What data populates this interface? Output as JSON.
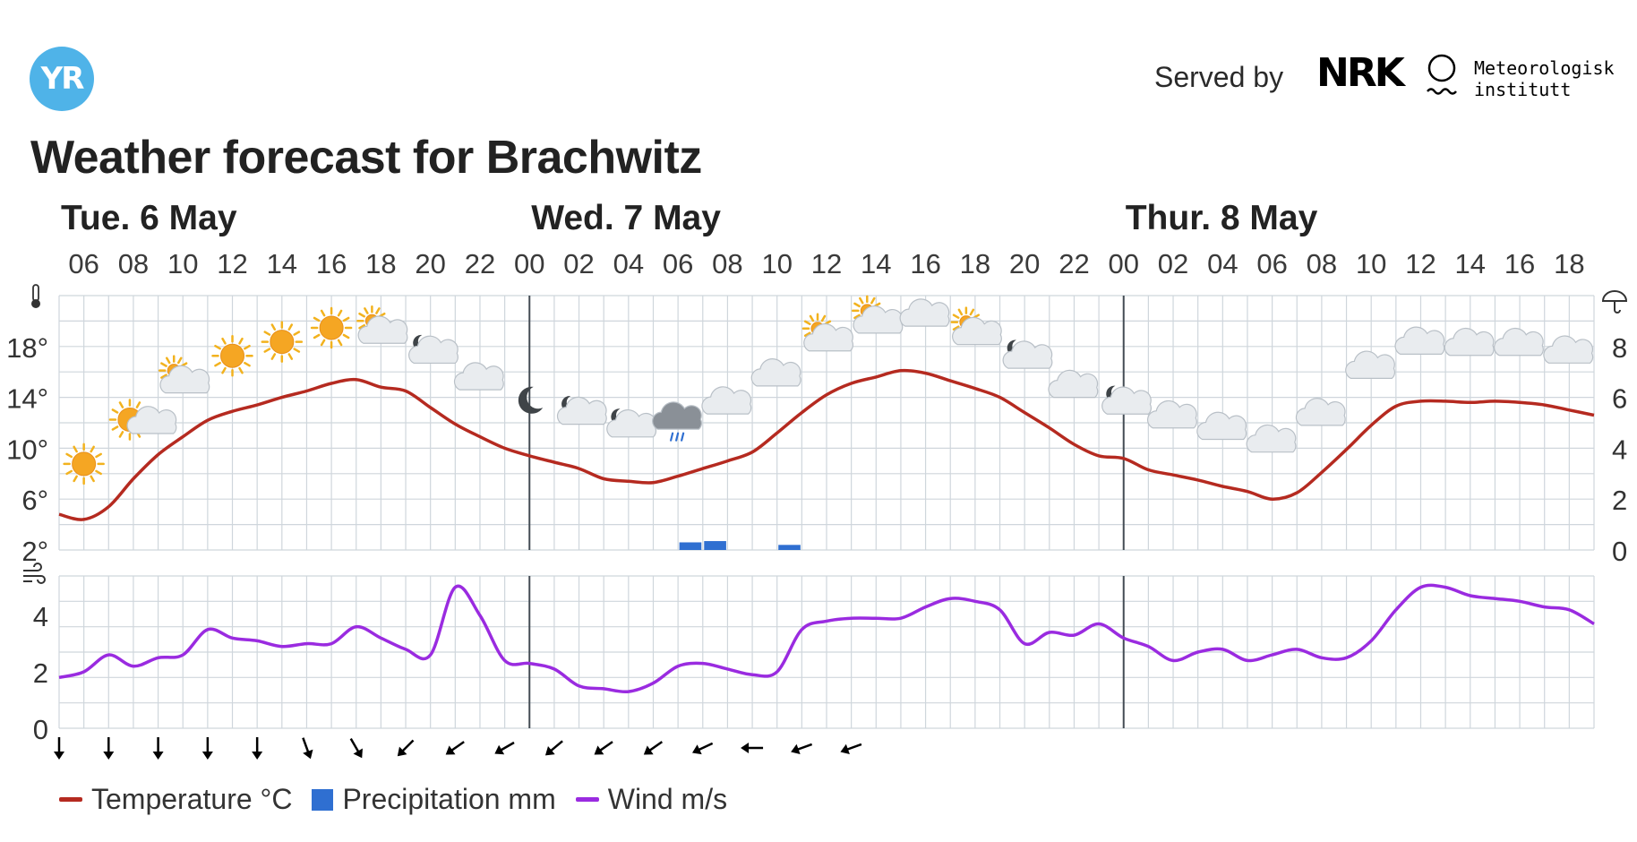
{
  "header": {
    "logo_text": "YR",
    "served_by": "Served by",
    "nrk_text": "NRK",
    "met_line1": "Meteorologisk",
    "met_line2": "institutt",
    "title": "Weather forecast for Brachwitz"
  },
  "legend": [
    {
      "label": "Temperature °C",
      "color": "#b52a20",
      "kind": "line"
    },
    {
      "label": "Precipitation mm",
      "color": "#2f6fd1",
      "kind": "box"
    },
    {
      "label": "Wind m/s",
      "color": "#9a2be0",
      "kind": "line"
    }
  ],
  "colors": {
    "temperature": "#b52a20",
    "precipitation": "#2f6fd1",
    "wind": "#9a2be0",
    "grid": "#cfd6dc",
    "day_divider": "#444c54"
  },
  "chart_data": [
    {
      "type": "line",
      "title": "Weather forecast for Brachwitz",
      "days": [
        {
          "label": "Tue. 6 May",
          "start_hour": 5
        },
        {
          "label": "Wed. 7 May",
          "start_hour": 24
        },
        {
          "label": "Thur. 8 May",
          "start_hour": 48
        }
      ],
      "hour_range": [
        5,
        67
      ],
      "x_tick_labels": [
        "06",
        "08",
        "10",
        "12",
        "14",
        "16",
        "18",
        "20",
        "22",
        "00",
        "02",
        "04",
        "06",
        "08",
        "10",
        "12",
        "14",
        "16",
        "18",
        "20",
        "22",
        "00",
        "02",
        "04",
        "06",
        "08",
        "10",
        "12",
        "14",
        "16",
        "18"
      ],
      "x_tick_hours": [
        6,
        8,
        10,
        12,
        14,
        16,
        18,
        20,
        22,
        24,
        26,
        28,
        30,
        32,
        34,
        36,
        38,
        40,
        42,
        44,
        46,
        48,
        50,
        52,
        54,
        56,
        58,
        60,
        62,
        64,
        66
      ],
      "left_axis": {
        "ticks": [
          "2°",
          "6°",
          "10°",
          "14°",
          "18°"
        ],
        "ylim": [
          2,
          22
        ],
        "icon": "thermometer-icon"
      },
      "right_axis": {
        "ticks": [
          "0",
          "2",
          "4",
          "6",
          "8"
        ],
        "ylim": [
          0,
          10
        ],
        "icon": "umbrella-icon"
      },
      "series": [
        {
          "name": "Temperature °C",
          "axis": "left",
          "x": [
            5,
            6,
            7,
            8,
            9,
            10,
            11,
            12,
            13,
            14,
            15,
            16,
            17,
            18,
            19,
            20,
            21,
            22,
            23,
            24,
            25,
            26,
            27,
            28,
            29,
            30,
            31,
            32,
            33,
            34,
            35,
            36,
            37,
            38,
            39,
            40,
            41,
            42,
            43,
            44,
            45,
            46,
            47,
            48,
            49,
            50,
            51,
            52,
            53,
            54,
            55,
            56,
            57,
            58,
            59,
            60,
            61,
            62,
            63,
            64,
            65,
            66,
            67
          ],
          "values": [
            4.8,
            4.4,
            5.4,
            7.6,
            9.5,
            10.9,
            12.2,
            12.9,
            13.4,
            14.0,
            14.5,
            15.1,
            15.4,
            14.8,
            14.5,
            13.2,
            11.9,
            10.9,
            10.0,
            9.4,
            8.9,
            8.4,
            7.6,
            7.4,
            7.3,
            7.8,
            8.4,
            9.0,
            9.7,
            11.2,
            12.8,
            14.2,
            15.1,
            15.6,
            16.1,
            15.9,
            15.3,
            14.7,
            14.0,
            12.8,
            11.6,
            10.3,
            9.4,
            9.2,
            8.3,
            7.9,
            7.5,
            7.0,
            6.6,
            6.0,
            6.5,
            8.1,
            9.9,
            11.8,
            13.3,
            13.7,
            13.7,
            13.6,
            13.7,
            13.6,
            13.4,
            13.0,
            12.6
          ]
        },
        {
          "name": "Precipitation mm",
          "axis": "right",
          "type": "bar",
          "x": [
            30,
            31,
            34
          ],
          "values": [
            0.3,
            0.35,
            0.2
          ]
        }
      ],
      "weather_symbols": [
        {
          "hour": 6,
          "icon": "sun-icon"
        },
        {
          "hour": 8,
          "icon": "sun-partly-cloudy-icon"
        },
        {
          "hour": 10,
          "icon": "partly-cloudy-day-icon"
        },
        {
          "hour": 12,
          "icon": "sun-icon"
        },
        {
          "hour": 14,
          "icon": "sun-icon"
        },
        {
          "hour": 16,
          "icon": "sun-icon"
        },
        {
          "hour": 18,
          "icon": "partly-cloudy-day-icon"
        },
        {
          "hour": 20,
          "icon": "partly-cloudy-night-icon"
        },
        {
          "hour": 22,
          "icon": "cloud-icon"
        },
        {
          "hour": 24,
          "icon": "moon-icon"
        },
        {
          "hour": 26,
          "icon": "partly-cloudy-night-icon"
        },
        {
          "hour": 28,
          "icon": "partly-cloudy-night-icon"
        },
        {
          "hour": 30,
          "icon": "rain-cloud-icon"
        },
        {
          "hour": 32,
          "icon": "cloud-icon"
        },
        {
          "hour": 34,
          "icon": "cloud-icon"
        },
        {
          "hour": 36,
          "icon": "partly-cloudy-day-icon"
        },
        {
          "hour": 38,
          "icon": "partly-cloudy-day-icon"
        },
        {
          "hour": 40,
          "icon": "cloud-icon"
        },
        {
          "hour": 42,
          "icon": "partly-cloudy-day-icon"
        },
        {
          "hour": 44,
          "icon": "partly-cloudy-night-icon"
        },
        {
          "hour": 46,
          "icon": "cloud-icon"
        },
        {
          "hour": 48,
          "icon": "partly-cloudy-night-icon"
        },
        {
          "hour": 50,
          "icon": "cloud-icon"
        },
        {
          "hour": 52,
          "icon": "cloud-icon"
        },
        {
          "hour": 54,
          "icon": "cloud-icon"
        },
        {
          "hour": 56,
          "icon": "cloud-icon"
        },
        {
          "hour": 58,
          "icon": "cloud-icon"
        },
        {
          "hour": 60,
          "icon": "cloud-icon"
        },
        {
          "hour": 62,
          "icon": "cloud-icon"
        },
        {
          "hour": 64,
          "icon": "cloud-icon"
        },
        {
          "hour": 66,
          "icon": "cloud-icon"
        }
      ]
    },
    {
      "type": "line",
      "left_axis": {
        "ticks": [
          "0",
          "2",
          "4"
        ],
        "ylim": [
          0,
          5.4
        ],
        "icon": "wind-icon"
      },
      "series": [
        {
          "name": "Wind m/s",
          "x": [
            5,
            6,
            7,
            8,
            9,
            10,
            11,
            12,
            13,
            14,
            15,
            16,
            17,
            18,
            19,
            20,
            21,
            22,
            23,
            24,
            25,
            26,
            27,
            28,
            29,
            30,
            31,
            32,
            33,
            34,
            35,
            36,
            37,
            38,
            39,
            40,
            41,
            42,
            43,
            44,
            45,
            46,
            47,
            48,
            49,
            50,
            51,
            52,
            53,
            54,
            55,
            56,
            57,
            58,
            59,
            60,
            61,
            62,
            63,
            64,
            65,
            66,
            67
          ],
          "values": [
            1.8,
            2.0,
            2.6,
            2.2,
            2.5,
            2.6,
            3.5,
            3.2,
            3.1,
            2.9,
            3.0,
            3.0,
            3.6,
            3.2,
            2.8,
            2.6,
            5.0,
            4.0,
            2.4,
            2.3,
            2.1,
            1.5,
            1.4,
            1.3,
            1.6,
            2.2,
            2.3,
            2.1,
            1.9,
            2.0,
            3.5,
            3.8,
            3.9,
            3.9,
            3.9,
            4.3,
            4.6,
            4.5,
            4.2,
            3.0,
            3.4,
            3.3,
            3.7,
            3.2,
            2.9,
            2.4,
            2.7,
            2.8,
            2.4,
            2.6,
            2.8,
            2.5,
            2.5,
            3.1,
            4.2,
            5.0,
            5.0,
            4.7,
            4.6,
            4.5,
            4.3,
            4.2,
            3.7
          ]
        }
      ],
      "wind_direction_deg": [
        0,
        340,
        0,
        0,
        0,
        0,
        0,
        0,
        0,
        0,
        340,
        330,
        330,
        345,
        45,
        55,
        55,
        60,
        60,
        50,
        50,
        45,
        55,
        35,
        55,
        60,
        65,
        80,
        90,
        80,
        70,
        75,
        70
      ]
    }
  ]
}
